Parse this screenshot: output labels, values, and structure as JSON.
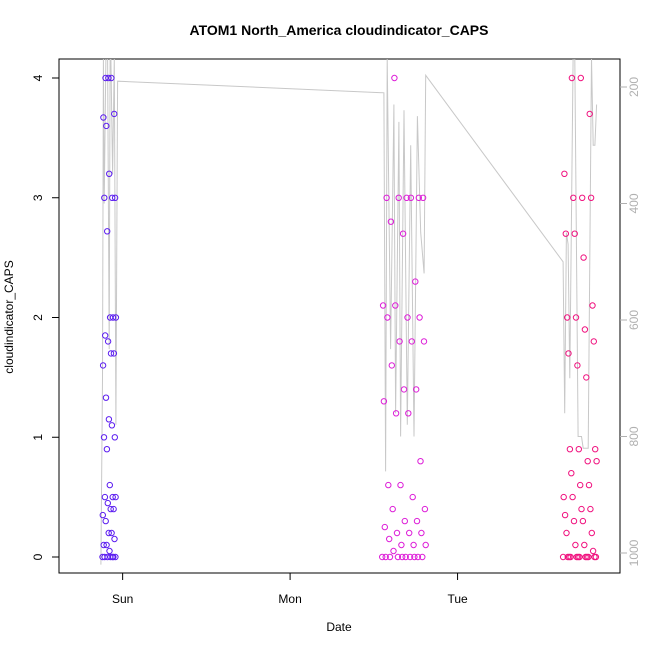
{
  "chart_data": {
    "type": "scatter",
    "title": "ATOM1 North_America cloudindicator_CAPS",
    "xlabel": "Date",
    "ylabel": "cloudindicator_CAPS",
    "x_ticks": [
      "Sun",
      "Mon",
      "Tue"
    ],
    "y_ticks": [
      "0",
      "1",
      "2",
      "3",
      "4"
    ],
    "y_right_ticks": [
      "200",
      "400",
      "600",
      "800",
      "1000"
    ],
    "ylim": [
      0,
      4
    ],
    "y_right_lim": [
      1040,
      160
    ],
    "xlim_days": [
      -0.38,
      2.97
    ],
    "grid": false,
    "colors": {
      "group1": "#5b1cf0",
      "group2": "#dd1ed8",
      "group3": "#f0127f",
      "line": "#c8c8c8",
      "right_axis": "#b0b0b0"
    },
    "series": [
      {
        "color_key": "group1",
        "x_range_days": [
          -0.12,
          -0.04
        ],
        "values": [
          0,
          0,
          0,
          0,
          0,
          0,
          0,
          0.05,
          0.1,
          0.1,
          0.15,
          0.2,
          0.2,
          0.3,
          0.35,
          0.4,
          0.4,
          0.45,
          0.5,
          0.5,
          0.5,
          0.6,
          0.9,
          1.0,
          1.0,
          1.1,
          1.15,
          1.33,
          1.6,
          1.7,
          1.7,
          1.8,
          1.85,
          2.0,
          2.0,
          2.0,
          2.72,
          3.0,
          3.0,
          3.0,
          3.2,
          3.6,
          3.67,
          3.7,
          4.0,
          4.0,
          4.0
        ]
      },
      {
        "color_key": "group2",
        "x_range_days": [
          1.55,
          1.81
        ],
        "values": [
          0,
          0,
          0,
          0,
          0,
          0,
          0,
          0,
          0,
          0,
          0.05,
          0.1,
          0.1,
          0.1,
          0.15,
          0.2,
          0.2,
          0.2,
          0.25,
          0.3,
          0.3,
          0.4,
          0.4,
          0.5,
          0.6,
          0.6,
          0.8,
          1.2,
          1.2,
          1.3,
          1.4,
          1.4,
          1.6,
          1.8,
          1.8,
          1.8,
          2.0,
          2.0,
          2.0,
          2.1,
          2.1,
          2.3,
          2.7,
          2.8,
          3.0,
          3.0,
          3.0,
          3.0,
          3.0,
          3.0,
          4.0
        ]
      },
      {
        "color_key": "group3",
        "x_range_days": [
          2.63,
          2.83
        ],
        "values": [
          0,
          0,
          0,
          0,
          0,
          0,
          0,
          0,
          0,
          0,
          0,
          0,
          0.05,
          0.1,
          0.1,
          0.2,
          0.2,
          0.3,
          0.3,
          0.35,
          0.4,
          0.4,
          0.5,
          0.5,
          0.6,
          0.6,
          0.7,
          0.8,
          0.8,
          0.9,
          0.9,
          0.9,
          1.5,
          1.6,
          1.7,
          1.8,
          1.9,
          2.0,
          2.0,
          2.1,
          2.5,
          2.7,
          2.7,
          3.0,
          3.0,
          3.0,
          3.2,
          3.7,
          4.0,
          4.0
        ]
      }
    ],
    "line_series": {
      "color_key": "line",
      "axis": "right",
      "points": [
        [
          -0.13,
          1020
        ],
        [
          -0.12,
          700
        ],
        [
          -0.115,
          150
        ],
        [
          -0.11,
          400
        ],
        [
          -0.1,
          150
        ],
        [
          -0.09,
          150
        ],
        [
          -0.08,
          650
        ],
        [
          -0.075,
          150
        ],
        [
          -0.07,
          150
        ],
        [
          -0.06,
          350
        ],
        [
          -0.05,
          150
        ],
        [
          -0.04,
          780
        ],
        [
          -0.03,
          190
        ],
        [
          1.56,
          210
        ],
        [
          1.57,
          860
        ],
        [
          1.58,
          150
        ],
        [
          1.6,
          650
        ],
        [
          1.62,
          230
        ],
        [
          1.63,
          760
        ],
        [
          1.65,
          260
        ],
        [
          1.66,
          800
        ],
        [
          1.68,
          240
        ],
        [
          1.7,
          780
        ],
        [
          1.72,
          300
        ],
        [
          1.74,
          800
        ],
        [
          1.76,
          250
        ],
        [
          1.78,
          450
        ],
        [
          1.8,
          520
        ],
        [
          1.81,
          180
        ],
        [
          2.63,
          500
        ],
        [
          2.64,
          760
        ],
        [
          2.65,
          450
        ],
        [
          2.66,
          470
        ],
        [
          2.67,
          700
        ],
        [
          2.69,
          150
        ],
        [
          2.7,
          150
        ],
        [
          2.72,
          800
        ],
        [
          2.74,
          800
        ],
        [
          2.75,
          820
        ],
        [
          2.78,
          820
        ],
        [
          2.8,
          150
        ],
        [
          2.81,
          300
        ],
        [
          2.82,
          300
        ],
        [
          2.83,
          230
        ]
      ]
    }
  }
}
